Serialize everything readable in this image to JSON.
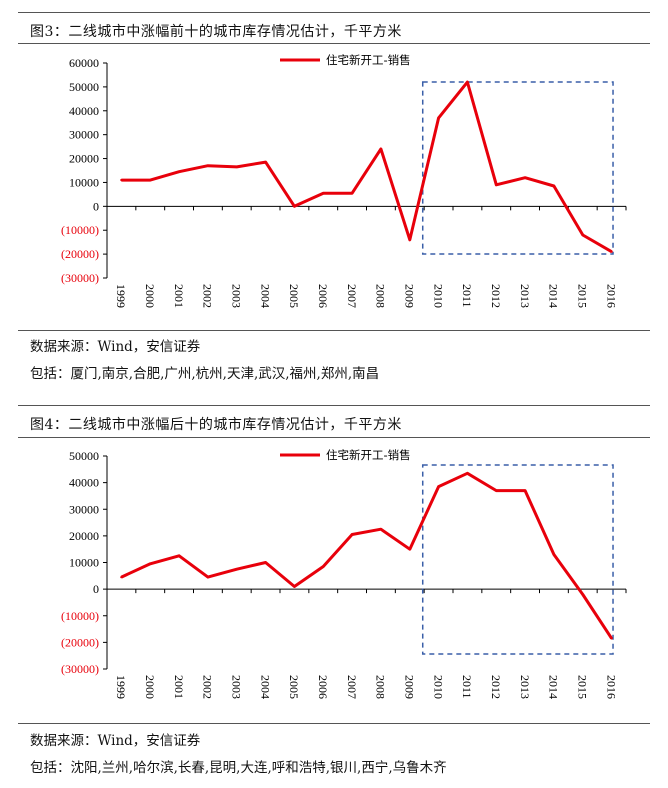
{
  "chart1": {
    "title": "图3：二线城市中涨幅前十的城市库存情况估计，千平方米",
    "source": "数据来源：Wind，安信证券",
    "cities": "包括：厦门,南京,合肥,广州,杭州,天津,武汉,福州,郑州,南昌"
  },
  "chart2": {
    "title": "图4：二线城市中涨幅后十的城市库存情况估计，千平方米",
    "source": "数据来源：Wind，安信证券",
    "cities": "包括：沈阳,兰州,哈尔滨,长春,昆明,大连,呼和浩特,银川,西宁,乌鲁木齐"
  },
  "colors": {
    "series": "#e8000b",
    "negative_tick": "#e8000b",
    "highlight_box": "#3a5fa8"
  },
  "chart_data": [
    {
      "type": "line",
      "title": "图3：二线城市中涨幅前十的城市库存情况估计，千平方米",
      "x": [
        "1999",
        "2000",
        "2001",
        "2002",
        "2003",
        "2004",
        "2005",
        "2006",
        "2007",
        "2008",
        "2009",
        "2010",
        "2011",
        "2012",
        "2013",
        "2014",
        "2015",
        "2016"
      ],
      "series": [
        {
          "name": "住宅新开工-销售",
          "values": [
            11000,
            11000,
            14500,
            17000,
            16500,
            18500,
            0,
            5500,
            5500,
            24000,
            -14000,
            37000,
            52000,
            9000,
            12000,
            8500,
            -12000,
            -19000
          ]
        }
      ],
      "ylim": [
        -30000,
        60000
      ],
      "yticks": [
        60000,
        50000,
        40000,
        30000,
        20000,
        10000,
        0,
        -10000,
        -20000,
        -30000
      ],
      "ytick_labels": [
        "60000",
        "50000",
        "40000",
        "30000",
        "20000",
        "10000",
        "0",
        "(10000)",
        "(20000)",
        "(30000)"
      ],
      "highlight": {
        "from": "2010",
        "to": "2016",
        "style": "dashed box"
      },
      "legend": "top-center"
    },
    {
      "type": "line",
      "title": "图4：二线城市中涨幅后十的城市库存情况估计，千平方米",
      "x": [
        "1999",
        "2000",
        "2001",
        "2002",
        "2003",
        "2004",
        "2005",
        "2006",
        "2007",
        "2008",
        "2009",
        "2010",
        "2011",
        "2012",
        "2013",
        "2014",
        "2015",
        "2016"
      ],
      "series": [
        {
          "name": "住宅新开工-销售",
          "values": [
            4500,
            9500,
            12500,
            4500,
            7500,
            10000,
            1000,
            8500,
            20500,
            22500,
            15000,
            38500,
            43500,
            37000,
            37000,
            13000,
            -2000,
            -18500
          ]
        }
      ],
      "ylim": [
        -30000,
        50000
      ],
      "yticks": [
        50000,
        40000,
        30000,
        20000,
        10000,
        0,
        -10000,
        -20000,
        -30000
      ],
      "ytick_labels": [
        "50000",
        "40000",
        "30000",
        "20000",
        "10000",
        "0",
        "(10000)",
        "(20000)",
        "(30000)"
      ],
      "highlight": {
        "from": "2010",
        "to": "2016",
        "style": "dashed box"
      },
      "legend": "top-center"
    }
  ]
}
